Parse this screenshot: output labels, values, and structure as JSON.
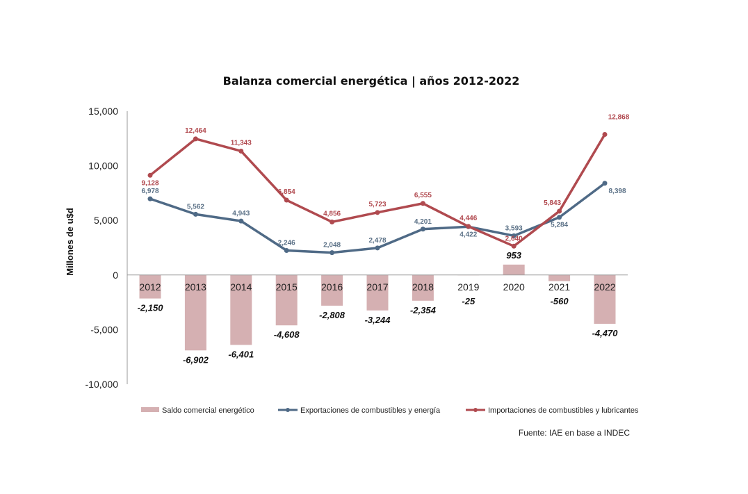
{
  "chart_data": {
    "type": "bar+line",
    "title": "Balanza comercial energética | años 2012-2022",
    "xlabel": "",
    "ylabel": "Millones de u$d",
    "ylim": [
      -10000,
      15000
    ],
    "yticks": [
      15000,
      10000,
      5000,
      0,
      -5000,
      -10000
    ],
    "ytick_labels": [
      "15,000",
      "10,000",
      "5,000",
      "0",
      "-5,000",
      "-10,000"
    ],
    "grid": false,
    "categories": [
      "2012",
      "2013",
      "2014",
      "2015",
      "2016",
      "2017",
      "2018",
      "2019",
      "2020",
      "2021",
      "2022"
    ],
    "series": [
      {
        "name": "Saldo comercial energético",
        "type": "bar",
        "color": "#d5b0b2",
        "values": [
          -2150,
          -6902,
          -6401,
          -4608,
          -2808,
          -3244,
          -2354,
          -25,
          953,
          -560,
          -4470
        ],
        "labels": [
          "-2,150",
          "-6,902",
          "-6,401",
          "-4,608",
          "-2,808",
          "-3,244",
          "-2,354",
          "-25",
          "953",
          "-560",
          "-4,470"
        ]
      },
      {
        "name": "Exportaciones de combustibles y energía",
        "type": "line",
        "color": "#4f6a86",
        "values": [
          6978,
          5562,
          4943,
          2246,
          2048,
          2478,
          4201,
          4422,
          3593,
          5284,
          8398
        ],
        "labels": [
          "6,978",
          "5,562",
          "4,943",
          "2,246",
          "2,048",
          "2,478",
          "4,201",
          "4,422",
          "3,593",
          "5,284",
          "8,398"
        ]
      },
      {
        "name": "Importaciones de combustibles y lubricantes",
        "type": "line",
        "color": "#b04a4f",
        "values": [
          9128,
          12464,
          11343,
          6854,
          4856,
          5723,
          6555,
          4446,
          2640,
          5843,
          12868
        ],
        "labels": [
          "9,128",
          "12,464",
          "11,343",
          "6,854",
          "4,856",
          "5,723",
          "6,555",
          "4,446",
          "2,640",
          "5,843",
          "12,868"
        ]
      }
    ],
    "legend_position": "bottom",
    "source": "Fuente: IAE en base a INDEC"
  }
}
